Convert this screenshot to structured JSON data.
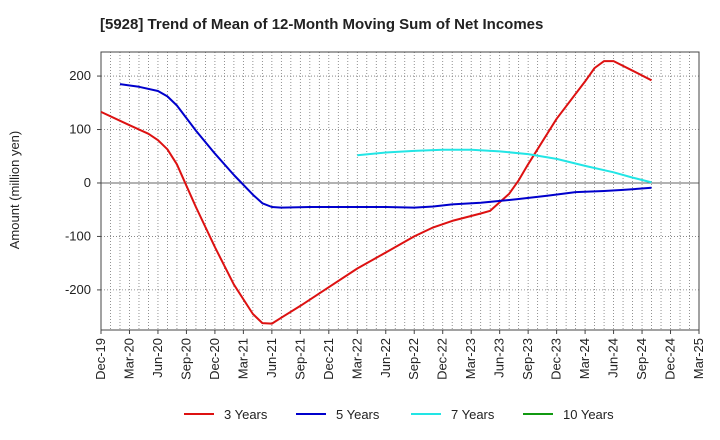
{
  "chart_data": {
    "type": "line",
    "title": "[5928]  Trend of Mean of 12-Month Moving Sum of Net Incomes",
    "ylabel": "Amount (million yen)",
    "xlabel": "",
    "x_tick_labels": [
      "Dec-19",
      "Mar-20",
      "Jun-20",
      "Sep-20",
      "Dec-20",
      "Mar-21",
      "Jun-21",
      "Sep-21",
      "Dec-21",
      "Mar-22",
      "Jun-22",
      "Sep-22",
      "Dec-22",
      "Mar-23",
      "Jun-23",
      "Sep-23",
      "Dec-23",
      "Mar-24",
      "Jun-24",
      "Sep-24",
      "Dec-24",
      "Mar-25"
    ],
    "y_ticks": [
      -200,
      -100,
      0,
      100,
      200
    ],
    "ylim": [
      -275,
      245
    ],
    "x_range": [
      0,
      63
    ],
    "grid": true,
    "legend_position": "bottom",
    "series": [
      {
        "name": "3 Years",
        "color": "#dd1111",
        "points": [
          [
            0,
            133
          ],
          [
            3,
            108
          ],
          [
            5,
            92
          ],
          [
            6,
            80
          ],
          [
            7,
            63
          ],
          [
            8,
            35
          ],
          [
            9,
            -5
          ],
          [
            10,
            -45
          ],
          [
            12,
            -120
          ],
          [
            14,
            -190
          ],
          [
            16,
            -245
          ],
          [
            17,
            -262
          ],
          [
            18,
            -263
          ],
          [
            19,
            -252
          ],
          [
            21,
            -230
          ],
          [
            24,
            -195
          ],
          [
            27,
            -160
          ],
          [
            30,
            -130
          ],
          [
            33,
            -100
          ],
          [
            35,
            -83
          ],
          [
            37,
            -71
          ],
          [
            40,
            -57
          ],
          [
            41,
            -52
          ],
          [
            43,
            -20
          ],
          [
            44,
            5
          ],
          [
            45,
            35
          ],
          [
            48,
            120
          ],
          [
            51,
            190
          ],
          [
            52,
            215
          ],
          [
            53,
            228
          ],
          [
            54,
            228
          ],
          [
            56,
            210
          ],
          [
            58,
            192
          ]
        ]
      },
      {
        "name": "5 Years",
        "color": "#0000cc",
        "points": [
          [
            2,
            185
          ],
          [
            4,
            180
          ],
          [
            6,
            172
          ],
          [
            7,
            162
          ],
          [
            8,
            145
          ],
          [
            10,
            98
          ],
          [
            12,
            55
          ],
          [
            14,
            15
          ],
          [
            16,
            -22
          ],
          [
            17,
            -38
          ],
          [
            18,
            -45
          ],
          [
            19,
            -46
          ],
          [
            22,
            -45
          ],
          [
            26,
            -45
          ],
          [
            30,
            -45
          ],
          [
            33,
            -46
          ],
          [
            35,
            -44
          ],
          [
            37,
            -40
          ],
          [
            40,
            -37
          ],
          [
            44,
            -30
          ],
          [
            47,
            -24
          ],
          [
            50,
            -17
          ],
          [
            53,
            -15
          ],
          [
            55,
            -13
          ],
          [
            58,
            -9
          ]
        ]
      },
      {
        "name": "7 Years",
        "color": "#22e5e5",
        "points": [
          [
            27,
            52
          ],
          [
            30,
            57
          ],
          [
            33,
            60
          ],
          [
            36,
            62
          ],
          [
            39,
            62
          ],
          [
            42,
            59
          ],
          [
            45,
            54
          ],
          [
            48,
            45
          ],
          [
            51,
            32
          ],
          [
            54,
            20
          ],
          [
            56,
            10
          ],
          [
            58,
            1
          ]
        ]
      },
      {
        "name": "10 Years",
        "color": "#119911",
        "points": []
      }
    ]
  }
}
